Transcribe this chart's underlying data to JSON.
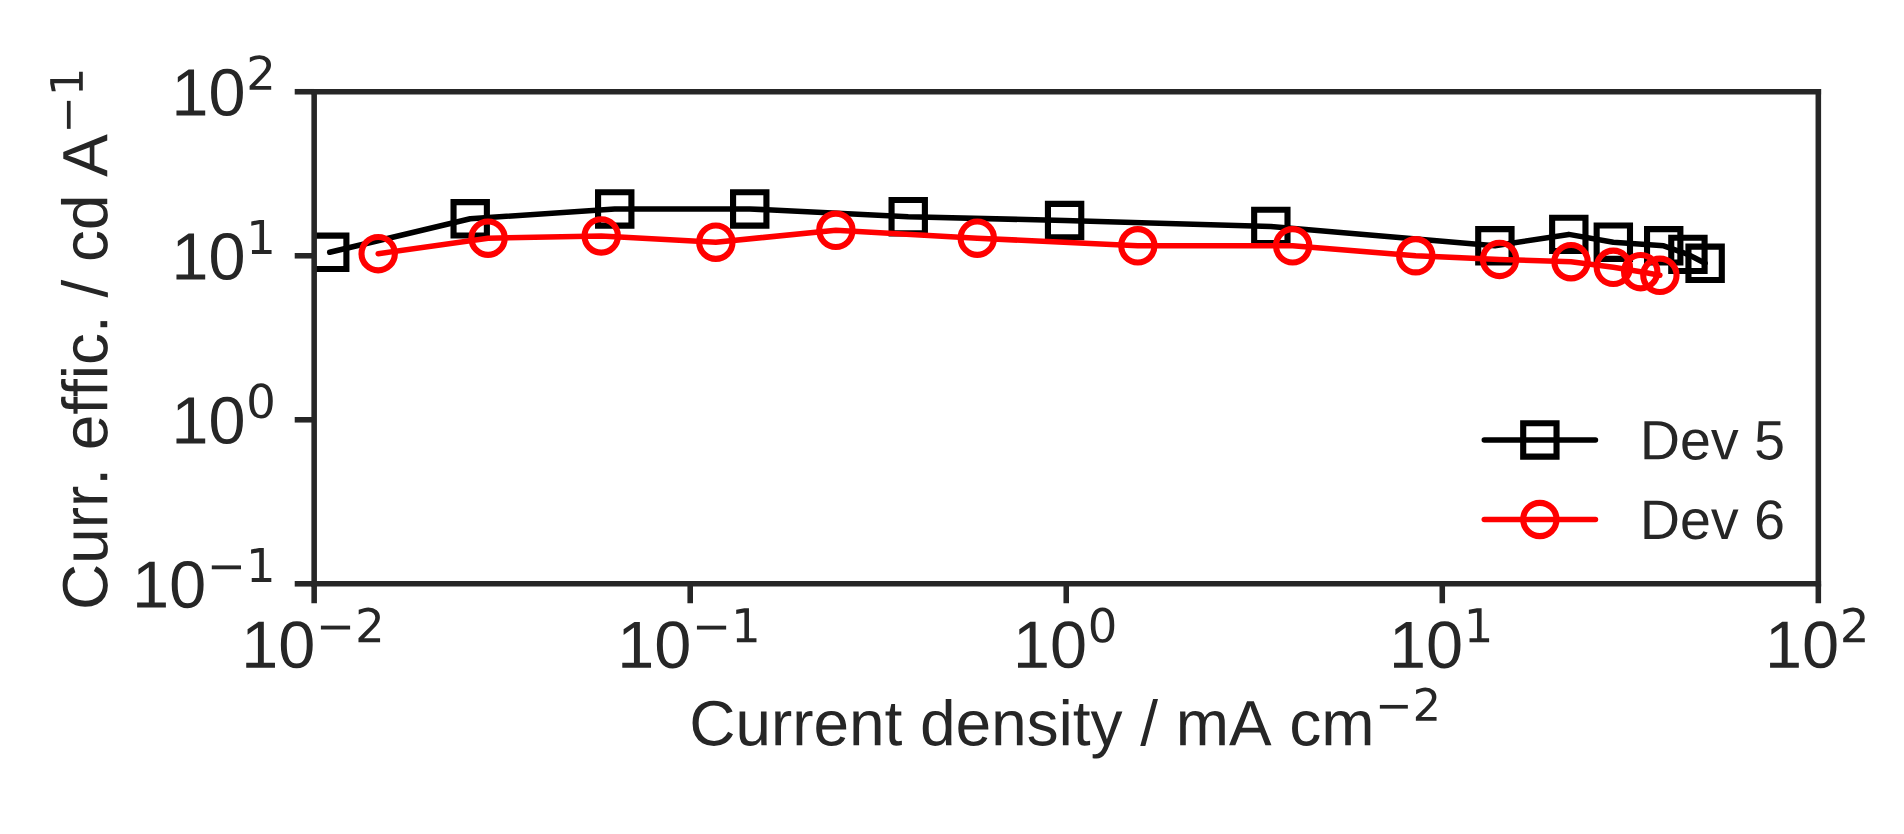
{
  "chart_data": {
    "type": "line",
    "xlabel": "Current density / mA cm$^{−2}$",
    "ylabel": "Curr. effic. / cd A$^{−1}$",
    "log": "xy",
    "xlim": [
      0.01,
      100
    ],
    "ylim": [
      0.1,
      100
    ],
    "xticks": [
      {
        "value": 0.01,
        "label": "10$^{−2}$"
      },
      {
        "value": 0.1,
        "label": "10$^{−1}$"
      },
      {
        "value": 1,
        "label": "10$^{0}$"
      },
      {
        "value": 10,
        "label": "10$^{1}$"
      },
      {
        "value": 100,
        "label": "10$^{2}$"
      }
    ],
    "yticks": [
      {
        "value": 0.1,
        "label": "10$^{−1}$"
      },
      {
        "value": 1,
        "label": "10$^{0}$"
      },
      {
        "value": 10,
        "label": "10$^{1}$"
      },
      {
        "value": 100,
        "label": "10$^{2}$"
      }
    ],
    "grid": false,
    "legend": "bottom right",
    "series": [
      {
        "name": "Dev 5",
        "color": "#000000",
        "marker": "square",
        "x": [
          0.011,
          0.026,
          0.063,
          0.144,
          0.38,
          0.99,
          3.5,
          13.8,
          21.7,
          28.5,
          38.8,
          45,
          50
        ],
        "values": [
          10.5,
          16.8,
          19.3,
          19.3,
          17.3,
          16.4,
          15.1,
          11.5,
          13.5,
          12.1,
          11.5,
          10.2,
          9.0
        ]
      },
      {
        "name": "Dev 6",
        "color": "#ff0000",
        "marker": "circle",
        "x": [
          0.0148,
          0.029,
          0.058,
          0.117,
          0.244,
          0.58,
          1.55,
          4.0,
          8.5,
          14.2,
          22,
          28.5,
          33.7,
          37.9
        ],
        "values": [
          10.3,
          12.8,
          13.2,
          12.1,
          14.3,
          12.8,
          11.5,
          11.5,
          10,
          9.5,
          9.2,
          8.5,
          8.0,
          7.6
        ]
      }
    ]
  }
}
